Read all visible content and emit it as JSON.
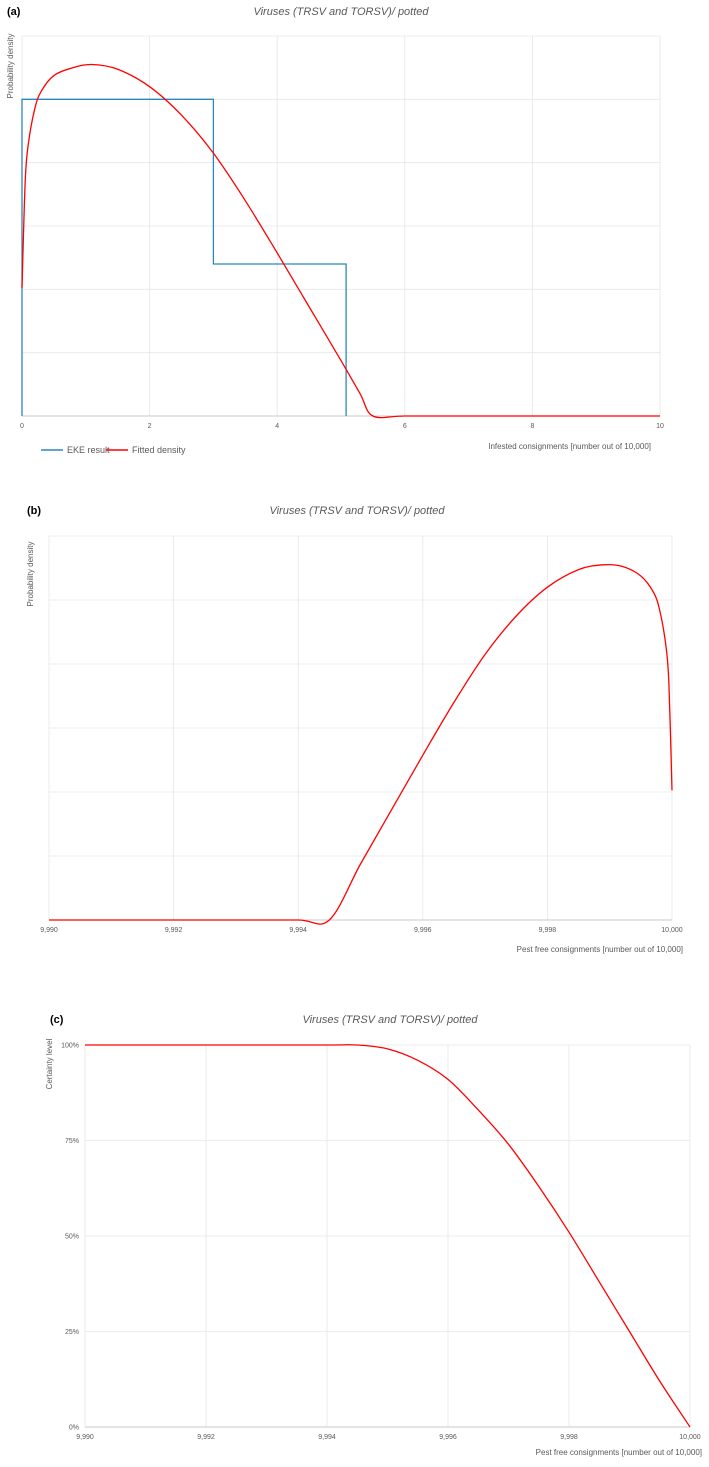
{
  "chart_data": [
    {
      "panel": "(a)",
      "type": "line",
      "title": "Viruses (TRSV and TORSV)/ potted",
      "xlabel": "Infested consignments [number out of 10,000]",
      "ylabel": "Probability density",
      "xlim": [
        0,
        10
      ],
      "xticks": [
        0,
        2,
        4,
        6,
        8,
        10
      ],
      "xtick_labels": [
        "0",
        "2",
        "4",
        "6",
        "8",
        "10"
      ],
      "y_gridlines": 6,
      "grid": true,
      "legend": {
        "position": "bottom-left",
        "entries": [
          "EKE result",
          "Fitted density"
        ]
      },
      "series": [
        {
          "name": "EKE result",
          "kind": "step",
          "color": "#2e86c1",
          "x": [
            0,
            0,
            3,
            3,
            5.08,
            5.08
          ],
          "y": [
            0,
            0.2,
            0.2,
            0.096,
            0.096,
            0
          ]
        },
        {
          "name": "Fitted density",
          "kind": "curve",
          "color": "#ff0000",
          "x": [
            0,
            0.05,
            0.1,
            0.2,
            0.3,
            0.5,
            0.8,
            1.1,
            1.5,
            2,
            2.5,
            3,
            3.5,
            4,
            4.5,
            5,
            5.3,
            5.5,
            6,
            7,
            8,
            9,
            10
          ],
          "y": [
            0.081,
            0.148,
            0.172,
            0.194,
            0.205,
            0.215,
            0.22,
            0.222,
            0.219,
            0.208,
            0.19,
            0.166,
            0.136,
            0.103,
            0.069,
            0.035,
            0.014,
            0,
            0,
            0,
            0,
            0,
            0
          ]
        }
      ]
    },
    {
      "panel": "(b)",
      "type": "line",
      "title": "Viruses (TRSV and TORSV)/ potted",
      "xlabel": "Pest free consignments [number out of 10,000]",
      "ylabel": "Probability density",
      "xlim": [
        9990,
        10000
      ],
      "xticks": [
        9990,
        9992,
        9994,
        9996,
        9998,
        10000
      ],
      "xtick_labels": [
        "9,990",
        "9,992",
        "9,994",
        "9,996",
        "9,998",
        "10,000"
      ],
      "y_gridlines": 6,
      "grid": true,
      "series": [
        {
          "name": "",
          "color": "#ff0000",
          "x": [
            9990,
            9991,
            9992,
            9993,
            9994,
            9994.5,
            9995,
            9995.5,
            9996,
            9996.5,
            9997,
            9997.5,
            9998,
            9998.5,
            9998.9,
            9999.2,
            9999.5,
            9999.7,
            9999.8,
            9999.9,
            9999.95,
            10000
          ],
          "y": [
            0,
            0,
            0,
            0,
            0,
            0,
            0.035,
            0.069,
            0.103,
            0.136,
            0.166,
            0.19,
            0.208,
            0.219,
            0.222,
            0.221,
            0.215,
            0.205,
            0.194,
            0.172,
            0.148,
            0.081
          ]
        }
      ]
    },
    {
      "panel": "(c)",
      "type": "line",
      "title": "Viruses (TRSV and TORSV)/ potted",
      "xlabel": "Pest free consignments [number out of 10,000]",
      "ylabel": "Certainty level",
      "xlim": [
        9990,
        10000
      ],
      "ylim": [
        0,
        100
      ],
      "xticks": [
        9990,
        9992,
        9994,
        9996,
        9998,
        10000
      ],
      "xtick_labels": [
        "9,990",
        "9,992",
        "9,994",
        "9,996",
        "9,998",
        "10,000"
      ],
      "yticks": [
        0,
        25,
        50,
        75,
        100
      ],
      "ytick_labels": [
        "0%",
        "25%",
        "50%",
        "75%",
        "100%"
      ],
      "grid": true,
      "series": [
        {
          "name": "",
          "color": "#ff0000",
          "x": [
            9990,
            9992,
            9994,
            9994.5,
            9995,
            9995.5,
            9996,
            9996.5,
            9997,
            9997.5,
            9998,
            9998.5,
            9999,
            9999.5,
            10000
          ],
          "y": [
            100,
            100,
            100,
            100,
            99,
            96,
            91,
            83,
            74,
            63,
            51,
            38,
            25,
            12,
            0
          ]
        }
      ]
    }
  ]
}
